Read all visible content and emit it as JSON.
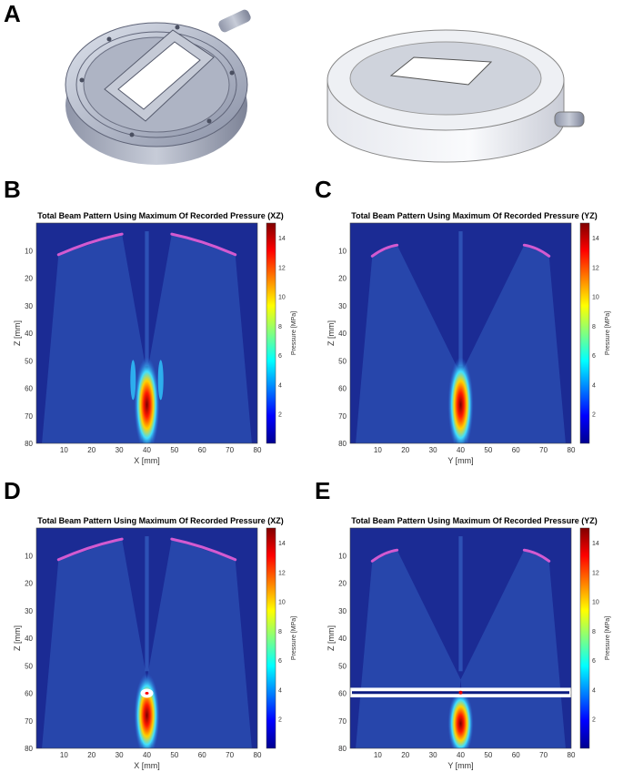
{
  "panels": {
    "A": {
      "letter": "A"
    },
    "B": {
      "letter": "B"
    },
    "C": {
      "letter": "C"
    },
    "D": {
      "letter": "D"
    },
    "E": {
      "letter": "E"
    }
  },
  "colors": {
    "background": "#1b2b94",
    "beam": "#3f78d6",
    "transducer": "#d35ad0",
    "marker": "#ffffff"
  },
  "chart_data": [
    {
      "panel": "B",
      "type": "heatmap",
      "title": "Total Beam Pattern Using Maximum Of Recorded Pressure (XZ)",
      "xlabel": "X [mm]",
      "ylabel": "Z [mm]",
      "colorbar_label": "Pressure [MPa]",
      "xlim": [
        0,
        80
      ],
      "ylim": [
        80,
        0
      ],
      "clim": [
        0,
        15
      ],
      "colormap": "jet",
      "xticks": [
        10,
        20,
        30,
        40,
        50,
        60,
        70,
        80
      ],
      "yticks": [
        10,
        20,
        30,
        40,
        50,
        60,
        70,
        80
      ],
      "cticks": [
        2,
        4,
        6,
        8,
        10,
        12,
        14
      ],
      "focus": {
        "x": 40,
        "z": 65,
        "peak": 15,
        "z_extent": [
          52,
          80
        ]
      },
      "side_lobes": [
        {
          "x": 35,
          "z": 52,
          "value": 5
        },
        {
          "x": 45,
          "z": 52,
          "value": 5
        }
      ],
      "transducer_arcs": [
        [
          [
            8,
            11.5
          ],
          [
            31,
            4
          ]
        ],
        [
          [
            49,
            4
          ],
          [
            72,
            11.5
          ]
        ]
      ]
    },
    {
      "panel": "C",
      "type": "heatmap",
      "title": "Total Beam Pattern Using Maximum Of Recorded Pressure (YZ)",
      "xlabel": "Y [mm]",
      "ylabel": "Z [mm]",
      "colorbar_label": "Pressure [MPa]",
      "xlim": [
        0,
        80
      ],
      "ylim": [
        80,
        0
      ],
      "clim": [
        0,
        15
      ],
      "colormap": "jet",
      "xticks": [
        10,
        20,
        30,
        40,
        50,
        60,
        70,
        80
      ],
      "yticks": [
        10,
        20,
        30,
        40,
        50,
        60,
        70,
        80
      ],
      "cticks": [
        2,
        4,
        6,
        8,
        10,
        12,
        14
      ],
      "focus": {
        "x": 40,
        "z": 65,
        "peak": 15,
        "z_extent": [
          52,
          80
        ]
      },
      "side_lobes": [],
      "transducer_arcs": [
        [
          [
            8,
            12
          ],
          [
            17,
            8
          ]
        ],
        [
          [
            63,
            8
          ],
          [
            72,
            12
          ]
        ]
      ]
    },
    {
      "panel": "D",
      "type": "heatmap",
      "title": "Total Beam Pattern Using Maximum Of Recorded Pressure (XZ)",
      "xlabel": "X [mm]",
      "ylabel": "Z [mm]",
      "colorbar_label": "Pressure [MPa]",
      "xlim": [
        0,
        80
      ],
      "ylim": [
        80,
        0
      ],
      "clim": [
        0,
        15
      ],
      "colormap": "jet",
      "xticks": [
        10,
        20,
        30,
        40,
        50,
        60,
        70,
        80
      ],
      "yticks": [
        10,
        20,
        30,
        40,
        50,
        60,
        70,
        80
      ],
      "cticks": [
        2,
        4,
        6,
        8,
        10,
        12,
        14
      ],
      "focus": {
        "x": 40,
        "z": 68,
        "peak": 14,
        "z_extent": [
          56,
          80
        ]
      },
      "side_lobes": [],
      "transducer_arcs": [
        [
          [
            8,
            11.5
          ],
          [
            31,
            4
          ]
        ],
        [
          [
            49,
            4
          ],
          [
            72,
            11.5
          ]
        ]
      ],
      "target": {
        "shape": "ellipse",
        "x": 40,
        "z": 60
      }
    },
    {
      "panel": "E",
      "type": "heatmap",
      "title": "Total Beam Pattern Using Maximum Of Recorded Pressure (YZ)",
      "xlabel": "Y [mm]",
      "ylabel": "Z [mm]",
      "colorbar_label": "Pressure [MPa]",
      "xlim": [
        0,
        80
      ],
      "ylim": [
        80,
        0
      ],
      "clim": [
        0,
        15
      ],
      "colormap": "jet",
      "xticks": [
        10,
        20,
        30,
        40,
        50,
        60,
        70,
        80
      ],
      "yticks": [
        10,
        20,
        30,
        40,
        50,
        60,
        70,
        80
      ],
      "cticks": [
        2,
        4,
        6,
        8,
        10,
        12,
        14
      ],
      "focus": {
        "x": 40,
        "z": 69,
        "peak": 14,
        "z_extent": [
          62,
          80
        ]
      },
      "side_lobes": [],
      "transducer_arcs": [
        [
          [
            8,
            12
          ],
          [
            17,
            8
          ]
        ],
        [
          [
            63,
            8
          ],
          [
            72,
            12
          ]
        ]
      ],
      "target": {
        "shape": "band",
        "z_range": [
          58,
          61.5
        ]
      }
    }
  ]
}
